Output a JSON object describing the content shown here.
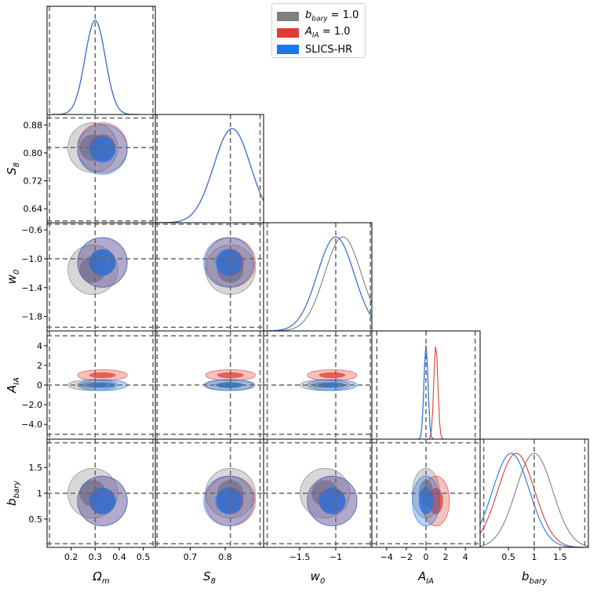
{
  "chart_data": {
    "type": "corner",
    "parameters": [
      {
        "label": "Ω_m",
        "ticks": [
          0.2,
          0.3,
          0.4,
          0.5
        ],
        "range": [
          0.1,
          0.55
        ],
        "truth": 0.3,
        "bounds": [
          0.11,
          0.54
        ]
      },
      {
        "label": "S_8",
        "ticks": [
          0.7,
          0.8
        ],
        "ylabel_ticks": [
          0.64,
          0.72,
          0.8,
          0.88
        ],
        "range": [
          0.6,
          0.91
        ],
        "truth": 0.815,
        "bounds": [
          0.605,
          0.9
        ]
      },
      {
        "label": "w_0",
        "ticks": [
          -1.5,
          -1.0
        ],
        "ylabel_ticks": [
          -1.8,
          -1.4,
          -1.0,
          -0.6
        ],
        "range": [
          -2.0,
          -0.5
        ],
        "truth": -1.0,
        "bounds": [
          -1.95,
          -0.52
        ]
      },
      {
        "label": "A_IA",
        "ticks": [
          -4,
          -2,
          0,
          2,
          4
        ],
        "range": [
          -5.5,
          5.5
        ],
        "truth": 0.0,
        "bounds": [
          -5.0,
          5.0
        ]
      },
      {
        "label": "b_bary",
        "ticks": [
          0.5,
          1.0,
          1.5
        ],
        "range": [
          -0.05,
          2.05
        ],
        "truth": 1.0,
        "bounds": [
          0.02,
          1.98
        ]
      }
    ],
    "series": [
      {
        "name": "b_bary = 1.0",
        "color": "#808080",
        "means": [
          0.29,
          0.815,
          -1.15,
          0.0,
          1.0
        ],
        "peaks1d": [
          0.3,
          0.82,
          -0.9,
          0.0,
          1.0
        ]
      },
      {
        "name": "A_IA = 1.0",
        "color": "#e03c31",
        "means": [
          0.33,
          0.815,
          -1.05,
          1.0,
          0.85
        ],
        "peaks1d": [
          0.3,
          0.82,
          -1.0,
          1.0,
          0.65
        ]
      },
      {
        "name": "SLICS-HR",
        "color": "#1f77e4",
        "means": [
          0.33,
          0.81,
          -1.05,
          0.0,
          0.85
        ],
        "peaks1d": [
          0.3,
          0.82,
          -1.0,
          0.0,
          0.55
        ]
      }
    ],
    "legend_position": "top-center"
  },
  "axis_labels": {
    "x": [
      "Ω",
      "S",
      "w",
      "A",
      "b"
    ],
    "x_sub": [
      "m",
      "8",
      "0",
      "IA",
      "bary"
    ],
    "y": [
      "S",
      "w",
      "A",
      "b"
    ],
    "y_sub": [
      "8",
      "0",
      "IA",
      "bary"
    ]
  },
  "legend": {
    "items": [
      {
        "label_main": "b",
        "label_sub": "bary",
        "label_rest": " = 1.0",
        "color": "#808080"
      },
      {
        "label_main": "A",
        "label_sub": "IA",
        "label_rest": " = 1.0",
        "color": "#e03c31"
      },
      {
        "label_main": "SLICS-HR",
        "label_sub": "",
        "label_rest": "",
        "color": "#1f77e4"
      }
    ]
  }
}
